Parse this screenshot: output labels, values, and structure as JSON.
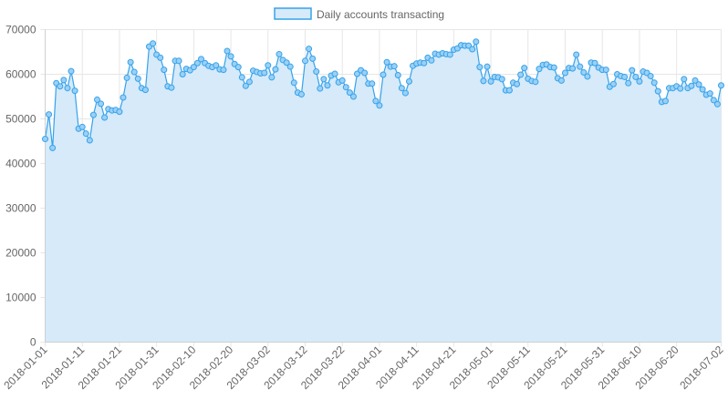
{
  "chart_data": {
    "type": "area",
    "legend": {
      "position": "top",
      "entries": [
        "Daily accounts transacting"
      ]
    },
    "series": [
      {
        "name": "Daily accounts transacting",
        "start_date": "2018-01-01",
        "values": [
          45500,
          51000,
          43500,
          58000,
          57300,
          58700,
          56900,
          60700,
          56300,
          47800,
          48200,
          46700,
          45200,
          50900,
          54300,
          53400,
          50300,
          52200,
          51900,
          52000,
          51600,
          54800,
          59200,
          62700,
          60500,
          59000,
          56900,
          56500,
          66200,
          66900,
          64400,
          63700,
          61000,
          57300,
          57000,
          63000,
          63000,
          60000,
          61200,
          60900,
          61600,
          62500,
          63400,
          62500,
          61900,
          61600,
          62000,
          61100,
          61000,
          65200,
          64000,
          62300,
          61600,
          59300,
          57400,
          58300,
          60800,
          60500,
          60200,
          60300,
          62000,
          59300,
          61100,
          64500,
          63200,
          62600,
          61700,
          58100,
          55900,
          55500,
          63000,
          65700,
          63500,
          60600,
          56800,
          58900,
          57500,
          59700,
          60100,
          58200,
          58600,
          57100,
          55900,
          55000,
          60100,
          60900,
          60300,
          57900,
          57900,
          54000,
          53000,
          59900,
          62700,
          61700,
          61800,
          59800,
          56900,
          55800,
          58400,
          61900,
          62400,
          62600,
          62500,
          63700,
          63100,
          64600,
          64400,
          64700,
          64500,
          64400,
          65500,
          65800,
          66500,
          66400,
          66400,
          65600,
          67300,
          61600,
          58500,
          61700,
          58400,
          59400,
          59300,
          58900,
          56400,
          56400,
          58100,
          57800,
          59900,
          61400,
          59000,
          58500,
          58300,
          61200,
          62100,
          62200,
          61600,
          61500,
          59100,
          58600,
          60300,
          61400,
          61300,
          64400,
          61700,
          60400,
          59500,
          62600,
          62500,
          61500,
          61000,
          61000,
          57200,
          57800,
          60000,
          59600,
          59400,
          58000,
          60900,
          59400,
          58400,
          60600,
          60300,
          59600,
          58100,
          56200,
          53800,
          54000,
          56900,
          56900,
          57300,
          56800,
          58900,
          56900,
          57400,
          58600,
          57700,
          56600,
          55400,
          55700,
          54200,
          53300,
          57500
        ]
      }
    ],
    "x_axis": {
      "type": "date",
      "min": "2018-01-01",
      "max": "2018-07-02",
      "tick_labels": [
        "2018-01-01",
        "2018-01-11",
        "2018-01-21",
        "2018-01-31",
        "2018-02-10",
        "2018-02-20",
        "2018-03-02",
        "2018-03-12",
        "2018-03-22",
        "2018-04-01",
        "2018-04-11",
        "2018-04-21",
        "2018-05-01",
        "2018-05-11",
        "2018-05-21",
        "2018-05-31",
        "2018-06-10",
        "2018-06-20",
        "2018-07-02"
      ]
    },
    "y_axis": {
      "min": 0,
      "max": 70000,
      "tick_labels": [
        "0",
        "10000",
        "20000",
        "30000",
        "40000",
        "50000",
        "60000",
        "70000"
      ]
    },
    "grid": true,
    "colors": {
      "line": "#36a2eb",
      "fill": "#d6eaf9",
      "point_fill": "#9ad0f5",
      "grid": "#e6e6e6",
      "text": "#666666"
    }
  }
}
